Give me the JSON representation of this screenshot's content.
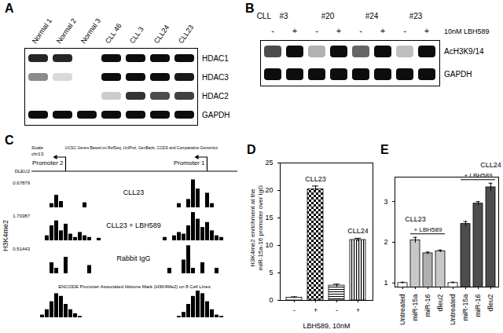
{
  "panels": {
    "A": {
      "title": "A",
      "lanes": [
        "Normal 1",
        "Normal 2",
        "Normal 3",
        "CLL 46",
        "CLL 3",
        "CLL24",
        "CLL23"
      ],
      "bands": [
        {
          "name": "HDAC1",
          "intensity": [
            0.85,
            0.85,
            0,
            0.95,
            0.95,
            0.95,
            0.95
          ]
        },
        {
          "name": "HDAC3",
          "intensity": [
            0.45,
            0.15,
            0,
            0.95,
            0.95,
            0.95,
            0.9
          ]
        },
        {
          "name": "HDAC2",
          "intensity": [
            0,
            0,
            0,
            0.2,
            0.8,
            0.7,
            0.75
          ]
        },
        {
          "name": "GAPDH",
          "intensity": [
            0.95,
            0.95,
            0.95,
            0.95,
            0.95,
            0.95,
            0.95
          ]
        }
      ]
    },
    "B": {
      "title": "B",
      "group_title": "CLL",
      "groups": [
        "#3",
        "#20",
        "#24",
        "#23"
      ],
      "treatment": "10nM LBH589",
      "lanes": [
        "-",
        "+",
        "-",
        "+",
        "-",
        "+",
        "-",
        "+"
      ],
      "bands": [
        {
          "name": "AcH3K9/14",
          "intensity": [
            0.7,
            0.95,
            0.3,
            0.95,
            0.6,
            0.95,
            0.25,
            0.95
          ]
        },
        {
          "name": "GAPDH",
          "intensity": [
            0.95,
            0.95,
            0.95,
            0.95,
            0.95,
            0.95,
            0.95,
            0.95
          ]
        }
      ]
    },
    "C": {
      "title": "C",
      "ylabel": "H3K4me2",
      "header": [
        "Scale",
        "chr13:"
      ],
      "gene": "DLEU2",
      "gene_note": "UCSC Genes Based on RefSeq, UniProt, GenBank, CCDS and Comparative Genomics",
      "promoters": [
        {
          "name": "Promoter 2",
          "bin": 5
        },
        {
          "name": "Promoter 1",
          "bin": 35
        }
      ],
      "tracks": [
        {
          "name": "CLL23",
          "ylim": [
            0,
            0.67879
          ],
          "values": [
            0,
            0,
            0.1,
            0.3,
            0.15,
            0,
            0,
            0,
            0,
            0.12,
            0,
            0,
            0,
            0,
            0,
            0,
            0,
            0,
            0,
            0,
            0,
            0,
            0,
            0,
            0,
            0,
            0,
            0,
            0,
            0.1,
            0,
            0.2,
            0.67,
            0.45,
            0,
            0.35,
            0.1,
            0,
            0,
            0
          ]
        },
        {
          "name": "CLL23 + LBH589",
          "ylim": [
            0,
            1.70387
          ],
          "values": [
            0,
            0.3,
            0.9,
            1.2,
            0.6,
            1.0,
            0.4,
            0.2,
            0.5,
            0.3,
            0.2,
            0,
            0.15,
            0,
            0,
            0,
            0,
            0,
            0,
            0,
            0,
            0,
            0,
            0,
            0,
            0,
            0.2,
            0,
            0.3,
            0.5,
            0.4,
            0.9,
            1.7,
            1.3,
            0.8,
            1.1,
            0.6,
            0.3,
            0.2,
            0
          ]
        },
        {
          "name": "Rabbit IgG",
          "ylim": [
            0,
            0.51443
          ],
          "values": [
            0,
            0,
            0.2,
            0.1,
            0,
            0.3,
            0,
            0,
            0,
            0,
            0.15,
            0,
            0,
            0,
            0,
            0,
            0,
            0,
            0,
            0,
            0,
            0,
            0,
            0,
            0,
            0,
            0,
            0.1,
            0,
            0,
            0.25,
            0.51,
            0.1,
            0,
            0.2,
            0,
            0,
            0.1,
            0,
            0
          ]
        },
        {
          "name": "ENCODE Promoter Associated Histone Mark (H3K4Me2) on 8 Cell Lines",
          "ylim": [
            0,
            1
          ],
          "tick_labels": false,
          "values": [
            0.1,
            0.3,
            0.6,
            0.9,
            0.8,
            0.5,
            0.3,
            0.15,
            0.05,
            0,
            0,
            0,
            0,
            0,
            0,
            0,
            0,
            0,
            0,
            0,
            0,
            0,
            0,
            0,
            0,
            0,
            0,
            0,
            0,
            0.05,
            0.2,
            0.5,
            0.8,
            1,
            0.9,
            0.6,
            0.3,
            0.1,
            0.05,
            0
          ]
        }
      ]
    }
  },
  "chart_data": [
    {
      "type": "bar",
      "title": "D",
      "ylabel": "H3K4me2 enrichment at the miR-15a-16 promoter over IgG",
      "xlabel": "LBH589, 10nM",
      "categories": [
        "-",
        "+",
        "-",
        "+"
      ],
      "groups": [
        "CLL23",
        "CLL23",
        "CLL24",
        "CLL24"
      ],
      "values": [
        0.5,
        20.2,
        2.7,
        11.0
      ],
      "errors": [
        0.15,
        0.6,
        0.25,
        0.3
      ],
      "ylim": [
        0,
        25
      ],
      "yticks": [
        0,
        5,
        10,
        15,
        20,
        25
      ]
    },
    {
      "type": "bar",
      "title": "E",
      "categories": [
        "Untreated",
        "miR-15a",
        "miR-16",
        "dleu2",
        "Untreated",
        "miR-15a",
        "miR-16",
        "dleu2"
      ],
      "groups": [
        "CLL23",
        "CLL23",
        "CLL23",
        "CLL23",
        "CLL24",
        "CLL24",
        "CLL24",
        "CLL24"
      ],
      "values": [
        1.0,
        2.05,
        1.73,
        1.78,
        1.0,
        2.45,
        2.95,
        3.35
      ],
      "errors": [
        0.02,
        0.07,
        0.03,
        0.03,
        0.02,
        0.06,
        0.05,
        0.1
      ],
      "colors": [
        "#ffffff",
        "#c8c8c8",
        "#b0b0b0",
        "#c8c8c8",
        "#ffffff",
        "#4d4d4d",
        "#4d4d4d",
        "#4d4d4d"
      ],
      "annotations": [
        {
          "text": "+ LBH589",
          "span": [
            1,
            3
          ]
        },
        {
          "text": "+ LBH589",
          "span": [
            5,
            7
          ]
        }
      ],
      "ylim": [
        0.9,
        3.6
      ],
      "yticks": [
        1,
        2,
        3
      ]
    }
  ]
}
